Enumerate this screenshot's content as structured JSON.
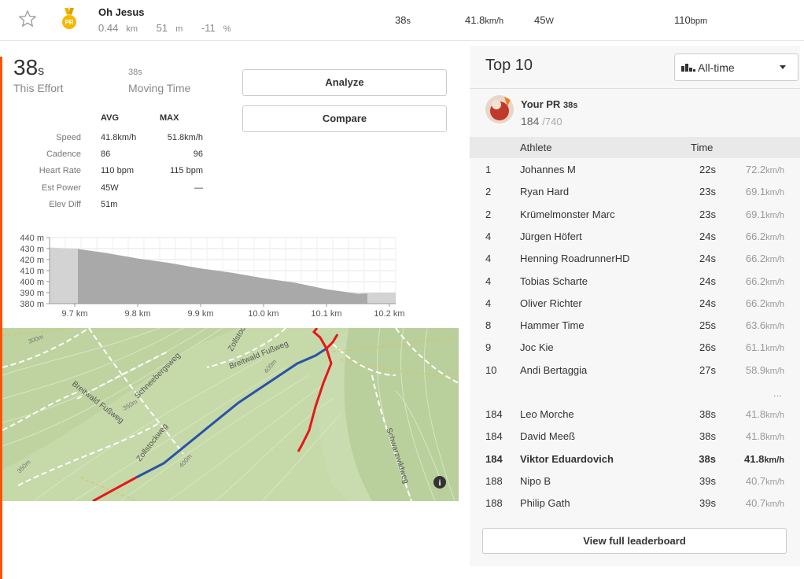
{
  "segment": {
    "name": "Oh Jesus",
    "distance": "0.44",
    "distance_unit": "km",
    "elevation": "51",
    "elevation_unit": "m",
    "grade": "-11",
    "grade_unit": "%",
    "time": "38",
    "time_unit": "s",
    "speed": "41.8",
    "speed_unit": "km/h",
    "power": "45",
    "power_unit": "W",
    "heart_rate": "110",
    "heart_rate_unit": "bpm",
    "medal_label": "PR"
  },
  "effort": {
    "value": "38",
    "unit": "s",
    "label": "This Effort",
    "moving_value": "38s",
    "moving_label": "Moving Time"
  },
  "buttons": {
    "analyze": "Analyze",
    "compare": "Compare"
  },
  "stats": {
    "avg_header": "AVG",
    "max_header": "MAX",
    "rows": [
      {
        "label": "Speed",
        "avg": "41.8km/h",
        "max": "51.8km/h"
      },
      {
        "label": "Cadence",
        "avg": "86",
        "max": "96"
      },
      {
        "label": "Heart Rate",
        "avg": "110 bpm",
        "max": "115 bpm"
      },
      {
        "label": "Est Power",
        "avg": "45W",
        "max": "—"
      },
      {
        "label": "Elev Diff",
        "avg": "51m",
        "max": ""
      }
    ]
  },
  "chart_data": {
    "type": "area",
    "title": "",
    "xlabel": "",
    "ylabel": "",
    "x_ticks": [
      "9.7 km",
      "9.8 km",
      "9.9 km",
      "10.0 km",
      "10.1 km",
      "10.2 km"
    ],
    "y_ticks": [
      "440 m",
      "430 m",
      "420 m",
      "410 m",
      "400 m",
      "390 m",
      "380 m"
    ],
    "ylim": [
      380,
      440
    ],
    "xlim": [
      9.66,
      10.21
    ],
    "x": [
      9.66,
      9.7,
      9.75,
      9.8,
      9.85,
      9.9,
      9.95,
      10.0,
      10.05,
      10.1,
      10.15,
      10.18,
      10.21
    ],
    "y": [
      431,
      430,
      426,
      421,
      417,
      412,
      408,
      403,
      399,
      393,
      389,
      390,
      390
    ],
    "highlight_range": [
      9.705,
      10.165
    ]
  },
  "map": {
    "labels": [
      "Zollstockweg",
      "Breitwald Fußweg",
      "Breitwald Fußweg",
      "Schneebergsweg",
      "Zollstockweg",
      "Schwarzwildweg",
      "300m",
      "350m",
      "350m",
      "400m",
      "400m"
    ],
    "info_icon": "i"
  },
  "leaderboard": {
    "title": "Top 10",
    "filter": "All-time",
    "pr_label": "Your PR",
    "pr_time": "38s",
    "pr_rank": "184",
    "pr_total": "/740",
    "col_athlete": "Athlete",
    "col_time": "Time",
    "top": [
      {
        "rank": "1",
        "name": "Johannes M",
        "time": "22s",
        "speed": "72.2",
        "unit": "km/h"
      },
      {
        "rank": "2",
        "name": "Ryan Hard",
        "time": "23s",
        "speed": "69.1",
        "unit": "km/h"
      },
      {
        "rank": "2",
        "name": "Krümelmonster Marc",
        "time": "23s",
        "speed": "69.1",
        "unit": "km/h"
      },
      {
        "rank": "4",
        "name": "Jürgen Höfert",
        "time": "24s",
        "speed": "66.2",
        "unit": "km/h"
      },
      {
        "rank": "4",
        "name": "Henning RoadrunnerHD",
        "time": "24s",
        "speed": "66.2",
        "unit": "km/h"
      },
      {
        "rank": "4",
        "name": "Tobias Scharte",
        "time": "24s",
        "speed": "66.2",
        "unit": "km/h"
      },
      {
        "rank": "4",
        "name": "Oliver Richter",
        "time": "24s",
        "speed": "66.2",
        "unit": "km/h"
      },
      {
        "rank": "8",
        "name": "Hammer Time",
        "time": "25s",
        "speed": "63.6",
        "unit": "km/h"
      },
      {
        "rank": "9",
        "name": "Joc Kie",
        "time": "26s",
        "speed": "61.1",
        "unit": "km/h"
      },
      {
        "rank": "10",
        "name": "Andi Bertaggia",
        "time": "27s",
        "speed": "58.9",
        "unit": "km/h"
      }
    ],
    "ellipsis": "...",
    "around": [
      {
        "rank": "184",
        "name": "Leo Morche",
        "time": "38s",
        "speed": "41.8",
        "unit": "km/h"
      },
      {
        "rank": "184",
        "name": "David Meeß",
        "time": "38s",
        "speed": "41.8",
        "unit": "km/h"
      },
      {
        "rank": "184",
        "name": "Viktor Eduardovich",
        "time": "38s",
        "speed": "41.8",
        "unit": "km/h"
      },
      {
        "rank": "188",
        "name": "Nipo B",
        "time": "39s",
        "speed": "40.7",
        "unit": "km/h"
      },
      {
        "rank": "188",
        "name": "Philip Gath",
        "time": "39s",
        "speed": "40.7",
        "unit": "km/h"
      }
    ],
    "full_button": "View full leaderboard"
  },
  "colors": {
    "accent": "#fc5200",
    "route_blue": "#2a52a8",
    "route_red": "#e4171e",
    "map_green": "#c4d8a8",
    "chart_fill": "#a9a9a9",
    "chart_fill_light": "#d3d3d3"
  }
}
